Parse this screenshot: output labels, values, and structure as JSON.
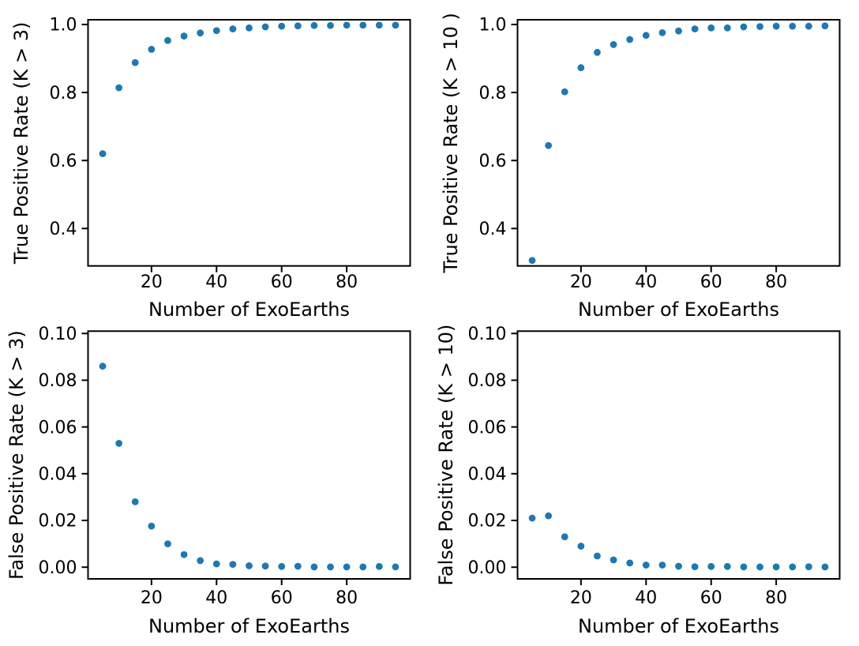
{
  "figure": {
    "background_color": "#ffffff",
    "marker_color": "#1f77b4",
    "axis_color": "#000000",
    "text_color": "#000000"
  },
  "chart_data": [
    {
      "id": "tpr-k3",
      "type": "scatter",
      "row": "top",
      "xlabel": "Number of ExoEarths",
      "ylabel": "True Positive Rate (K > 3)",
      "x": [
        5,
        10,
        15,
        20,
        25,
        30,
        35,
        40,
        45,
        50,
        55,
        60,
        65,
        70,
        75,
        80,
        85,
        90,
        95
      ],
      "y": [
        0.62,
        0.814,
        0.888,
        0.927,
        0.953,
        0.966,
        0.975,
        0.982,
        0.987,
        0.99,
        0.993,
        0.995,
        0.996,
        0.997,
        0.997,
        0.998,
        0.998,
        0.998,
        0.998
      ],
      "xlim": [
        0.5,
        99.5
      ],
      "ylim": [
        0.29,
        1.014
      ],
      "xticks": [
        20,
        40,
        60,
        80
      ],
      "xtick_labels": [
        "20",
        "40",
        "60",
        "80"
      ],
      "yticks": [
        0.4,
        0.6,
        0.8,
        1.0
      ],
      "ytick_labels": [
        "0.4",
        "0.6",
        "0.8",
        "1.0"
      ],
      "grid": false,
      "legend": null
    },
    {
      "id": "tpr-k10",
      "type": "scatter",
      "row": "top",
      "xlabel": "Number of ExoEarths",
      "ylabel": "True Positive Rate (K > 10 )",
      "x": [
        5,
        10,
        15,
        20,
        25,
        30,
        35,
        40,
        45,
        50,
        55,
        60,
        65,
        70,
        75,
        80,
        85,
        90,
        95
      ],
      "y": [
        0.306,
        0.644,
        0.802,
        0.873,
        0.918,
        0.941,
        0.956,
        0.968,
        0.976,
        0.981,
        0.987,
        0.99,
        0.99,
        0.993,
        0.994,
        0.995,
        0.995,
        0.995,
        0.996
      ],
      "xlim": [
        0.5,
        99.5
      ],
      "ylim": [
        0.29,
        1.014
      ],
      "xticks": [
        20,
        40,
        60,
        80
      ],
      "xtick_labels": [
        "20",
        "40",
        "60",
        "80"
      ],
      "yticks": [
        0.4,
        0.6,
        0.8,
        1.0
      ],
      "ytick_labels": [
        "0.4",
        "0.6",
        "0.8",
        "1.0"
      ],
      "grid": false,
      "legend": null
    },
    {
      "id": "fpr-k3",
      "type": "scatter",
      "row": "bottom",
      "xlabel": "Number of ExoEarths",
      "ylabel": "False Positive Rate (K > 3)",
      "x": [
        5,
        10,
        15,
        20,
        25,
        30,
        35,
        40,
        45,
        50,
        55,
        60,
        65,
        70,
        75,
        80,
        85,
        90,
        95
      ],
      "y": [
        0.086,
        0.053,
        0.028,
        0.0176,
        0.01,
        0.0054,
        0.0028,
        0.0014,
        0.0012,
        0.0006,
        0.0005,
        0.0003,
        0.0004,
        0.0001,
        0.0001,
        0.0001,
        0.0001,
        0.0003,
        0.0001
      ],
      "xlim": [
        0.5,
        99.5
      ],
      "ylim": [
        -0.005,
        0.101
      ],
      "xticks": [
        20,
        40,
        60,
        80
      ],
      "xtick_labels": [
        "20",
        "40",
        "60",
        "80"
      ],
      "yticks": [
        0.0,
        0.02,
        0.04,
        0.06,
        0.08,
        0.1
      ],
      "ytick_labels": [
        "0.00",
        "0.02",
        "0.04",
        "0.06",
        "0.08",
        "0.10"
      ],
      "grid": false,
      "legend": null
    },
    {
      "id": "fpr-k10",
      "type": "scatter",
      "row": "bottom",
      "xlabel": "Number of ExoEarths",
      "ylabel": "False Positive Rate (K > 10)",
      "x": [
        5,
        10,
        15,
        20,
        25,
        30,
        35,
        40,
        45,
        50,
        55,
        60,
        65,
        70,
        75,
        80,
        85,
        90,
        95
      ],
      "y": [
        0.021,
        0.022,
        0.013,
        0.009,
        0.0048,
        0.0031,
        0.0018,
        0.0009,
        0.0009,
        0.0004,
        0.0002,
        0.0003,
        0.0003,
        0.0001,
        0.0001,
        0.0001,
        0.0001,
        0.0002,
        0.0001
      ],
      "xlim": [
        0.5,
        99.5
      ],
      "ylim": [
        -0.005,
        0.101
      ],
      "xticks": [
        20,
        40,
        60,
        80
      ],
      "xtick_labels": [
        "20",
        "40",
        "60",
        "80"
      ],
      "yticks": [
        0.0,
        0.02,
        0.04,
        0.06,
        0.08,
        0.1
      ],
      "ytick_labels": [
        "0.00",
        "0.02",
        "0.04",
        "0.06",
        "0.08",
        "0.10"
      ],
      "grid": false,
      "legend": null
    }
  ]
}
